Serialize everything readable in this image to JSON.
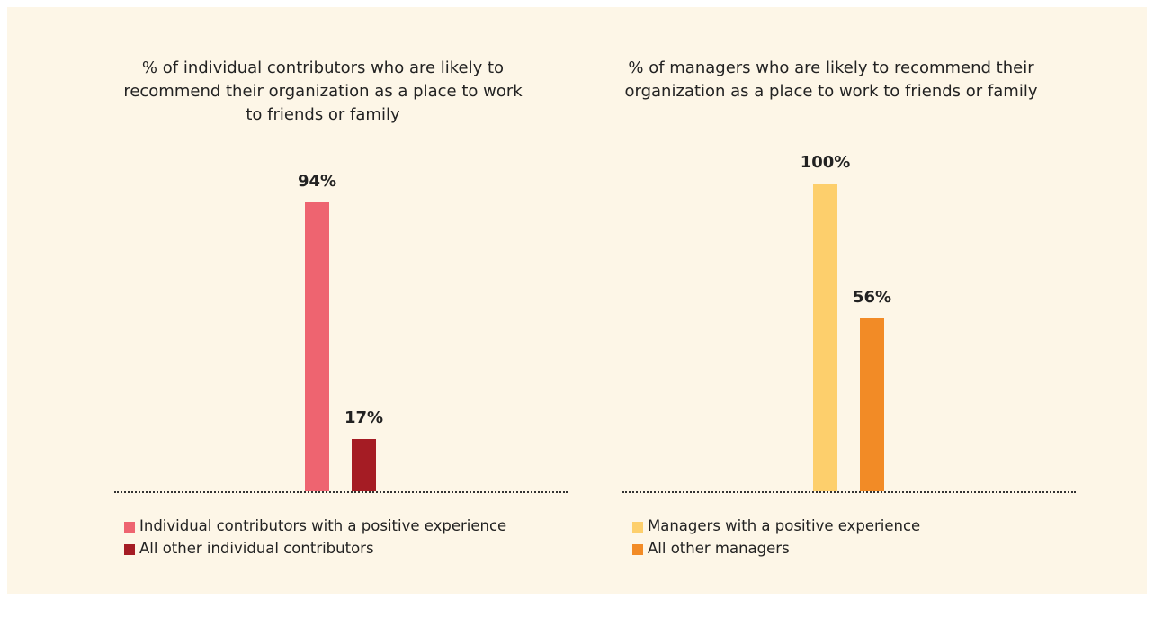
{
  "chart_data": [
    {
      "type": "bar",
      "title": "% of individual contributors who are likely to recommend their organization as a place to work to friends or family",
      "series": [
        {
          "name": "Individual contributors with a positive experience",
          "color": "#ee6470",
          "values": [
            94
          ],
          "value_labels": [
            "94%"
          ]
        },
        {
          "name": "All other individual contributors",
          "color": "#a51c24",
          "values": [
            17
          ],
          "value_labels": [
            "17%"
          ]
        }
      ]
    },
    {
      "type": "bar",
      "title": "% of managers who are likely to recommend their organization as a place to work to friends or family",
      "series": [
        {
          "name": "Managers with a positive experience",
          "color": "#fdcf6c",
          "values": [
            100
          ],
          "value_labels": [
            "100%"
          ]
        },
        {
          "name": "All other managers",
          "color": "#f28b26",
          "values": [
            56
          ],
          "value_labels": [
            "56%"
          ]
        }
      ]
    }
  ]
}
